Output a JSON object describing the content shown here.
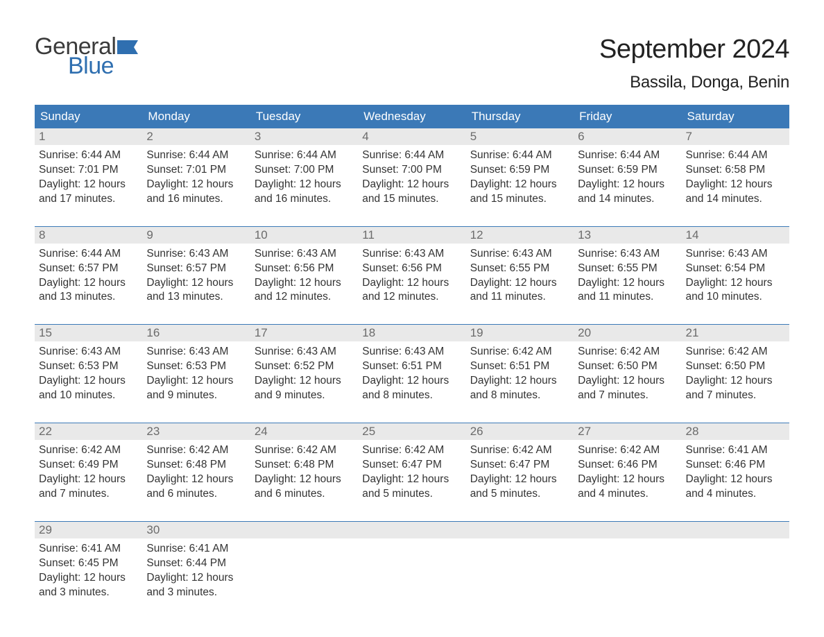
{
  "brand": {
    "general": "General",
    "blue": "Blue",
    "flag_color": "#2f6fb0"
  },
  "header": {
    "month_title": "September 2024",
    "location": "Bassila, Donga, Benin"
  },
  "header_colors": {
    "bar_bg": "#3b79b7",
    "bar_text": "#ffffff"
  },
  "day_names": [
    "Sunday",
    "Monday",
    "Tuesday",
    "Wednesday",
    "Thursday",
    "Friday",
    "Saturday"
  ],
  "text_colors": {
    "daynum": "#6b6b6b",
    "body": "#333333",
    "daynum_bg": "#e9e9e9"
  },
  "weeks": [
    [
      {
        "n": "1",
        "sr": "Sunrise: 6:44 AM",
        "ss": "Sunset: 7:01 PM",
        "d1": "Daylight: 12 hours",
        "d2": "and 17 minutes."
      },
      {
        "n": "2",
        "sr": "Sunrise: 6:44 AM",
        "ss": "Sunset: 7:01 PM",
        "d1": "Daylight: 12 hours",
        "d2": "and 16 minutes."
      },
      {
        "n": "3",
        "sr": "Sunrise: 6:44 AM",
        "ss": "Sunset: 7:00 PM",
        "d1": "Daylight: 12 hours",
        "d2": "and 16 minutes."
      },
      {
        "n": "4",
        "sr": "Sunrise: 6:44 AM",
        "ss": "Sunset: 7:00 PM",
        "d1": "Daylight: 12 hours",
        "d2": "and 15 minutes."
      },
      {
        "n": "5",
        "sr": "Sunrise: 6:44 AM",
        "ss": "Sunset: 6:59 PM",
        "d1": "Daylight: 12 hours",
        "d2": "and 15 minutes."
      },
      {
        "n": "6",
        "sr": "Sunrise: 6:44 AM",
        "ss": "Sunset: 6:59 PM",
        "d1": "Daylight: 12 hours",
        "d2": "and 14 minutes."
      },
      {
        "n": "7",
        "sr": "Sunrise: 6:44 AM",
        "ss": "Sunset: 6:58 PM",
        "d1": "Daylight: 12 hours",
        "d2": "and 14 minutes."
      }
    ],
    [
      {
        "n": "8",
        "sr": "Sunrise: 6:44 AM",
        "ss": "Sunset: 6:57 PM",
        "d1": "Daylight: 12 hours",
        "d2": "and 13 minutes."
      },
      {
        "n": "9",
        "sr": "Sunrise: 6:43 AM",
        "ss": "Sunset: 6:57 PM",
        "d1": "Daylight: 12 hours",
        "d2": "and 13 minutes."
      },
      {
        "n": "10",
        "sr": "Sunrise: 6:43 AM",
        "ss": "Sunset: 6:56 PM",
        "d1": "Daylight: 12 hours",
        "d2": "and 12 minutes."
      },
      {
        "n": "11",
        "sr": "Sunrise: 6:43 AM",
        "ss": "Sunset: 6:56 PM",
        "d1": "Daylight: 12 hours",
        "d2": "and 12 minutes."
      },
      {
        "n": "12",
        "sr": "Sunrise: 6:43 AM",
        "ss": "Sunset: 6:55 PM",
        "d1": "Daylight: 12 hours",
        "d2": "and 11 minutes."
      },
      {
        "n": "13",
        "sr": "Sunrise: 6:43 AM",
        "ss": "Sunset: 6:55 PM",
        "d1": "Daylight: 12 hours",
        "d2": "and 11 minutes."
      },
      {
        "n": "14",
        "sr": "Sunrise: 6:43 AM",
        "ss": "Sunset: 6:54 PM",
        "d1": "Daylight: 12 hours",
        "d2": "and 10 minutes."
      }
    ],
    [
      {
        "n": "15",
        "sr": "Sunrise: 6:43 AM",
        "ss": "Sunset: 6:53 PM",
        "d1": "Daylight: 12 hours",
        "d2": "and 10 minutes."
      },
      {
        "n": "16",
        "sr": "Sunrise: 6:43 AM",
        "ss": "Sunset: 6:53 PM",
        "d1": "Daylight: 12 hours",
        "d2": "and 9 minutes."
      },
      {
        "n": "17",
        "sr": "Sunrise: 6:43 AM",
        "ss": "Sunset: 6:52 PM",
        "d1": "Daylight: 12 hours",
        "d2": "and 9 minutes."
      },
      {
        "n": "18",
        "sr": "Sunrise: 6:43 AM",
        "ss": "Sunset: 6:51 PM",
        "d1": "Daylight: 12 hours",
        "d2": "and 8 minutes."
      },
      {
        "n": "19",
        "sr": "Sunrise: 6:42 AM",
        "ss": "Sunset: 6:51 PM",
        "d1": "Daylight: 12 hours",
        "d2": "and 8 minutes."
      },
      {
        "n": "20",
        "sr": "Sunrise: 6:42 AM",
        "ss": "Sunset: 6:50 PM",
        "d1": "Daylight: 12 hours",
        "d2": "and 7 minutes."
      },
      {
        "n": "21",
        "sr": "Sunrise: 6:42 AM",
        "ss": "Sunset: 6:50 PM",
        "d1": "Daylight: 12 hours",
        "d2": "and 7 minutes."
      }
    ],
    [
      {
        "n": "22",
        "sr": "Sunrise: 6:42 AM",
        "ss": "Sunset: 6:49 PM",
        "d1": "Daylight: 12 hours",
        "d2": "and 7 minutes."
      },
      {
        "n": "23",
        "sr": "Sunrise: 6:42 AM",
        "ss": "Sunset: 6:48 PM",
        "d1": "Daylight: 12 hours",
        "d2": "and 6 minutes."
      },
      {
        "n": "24",
        "sr": "Sunrise: 6:42 AM",
        "ss": "Sunset: 6:48 PM",
        "d1": "Daylight: 12 hours",
        "d2": "and 6 minutes."
      },
      {
        "n": "25",
        "sr": "Sunrise: 6:42 AM",
        "ss": "Sunset: 6:47 PM",
        "d1": "Daylight: 12 hours",
        "d2": "and 5 minutes."
      },
      {
        "n": "26",
        "sr": "Sunrise: 6:42 AM",
        "ss": "Sunset: 6:47 PM",
        "d1": "Daylight: 12 hours",
        "d2": "and 5 minutes."
      },
      {
        "n": "27",
        "sr": "Sunrise: 6:42 AM",
        "ss": "Sunset: 6:46 PM",
        "d1": "Daylight: 12 hours",
        "d2": "and 4 minutes."
      },
      {
        "n": "28",
        "sr": "Sunrise: 6:41 AM",
        "ss": "Sunset: 6:46 PM",
        "d1": "Daylight: 12 hours",
        "d2": "and 4 minutes."
      }
    ],
    [
      {
        "n": "29",
        "sr": "Sunrise: 6:41 AM",
        "ss": "Sunset: 6:45 PM",
        "d1": "Daylight: 12 hours",
        "d2": "and 3 minutes."
      },
      {
        "n": "30",
        "sr": "Sunrise: 6:41 AM",
        "ss": "Sunset: 6:44 PM",
        "d1": "Daylight: 12 hours",
        "d2": "and 3 minutes."
      },
      null,
      null,
      null,
      null,
      null
    ]
  ]
}
